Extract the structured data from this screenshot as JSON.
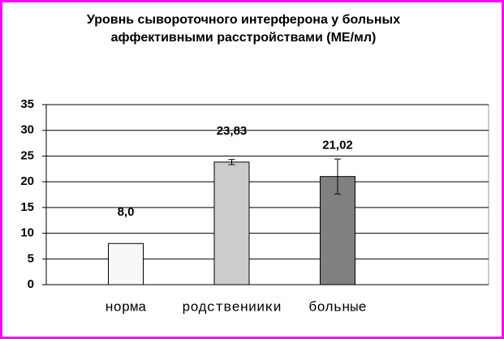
{
  "chart_data": {
    "type": "bar",
    "title": [
      "Уровнь сывороточного интерферона у больных",
      "аффективными расстройствами (МЕ/мл)"
    ],
    "categories": [
      "норма",
      "родствениики",
      "больные"
    ],
    "values": [
      8.0,
      23.83,
      21.02
    ],
    "value_labels": [
      "8,0",
      "23,83",
      "21,02"
    ],
    "errors": [
      null,
      0.5,
      3.4
    ],
    "colors": [
      "#f8f8f8",
      "#cccccc",
      "#808080"
    ],
    "ylim": [
      0,
      35
    ],
    "yticks": [
      0,
      5,
      10,
      15,
      20,
      25,
      30,
      35
    ],
    "grid": true
  }
}
